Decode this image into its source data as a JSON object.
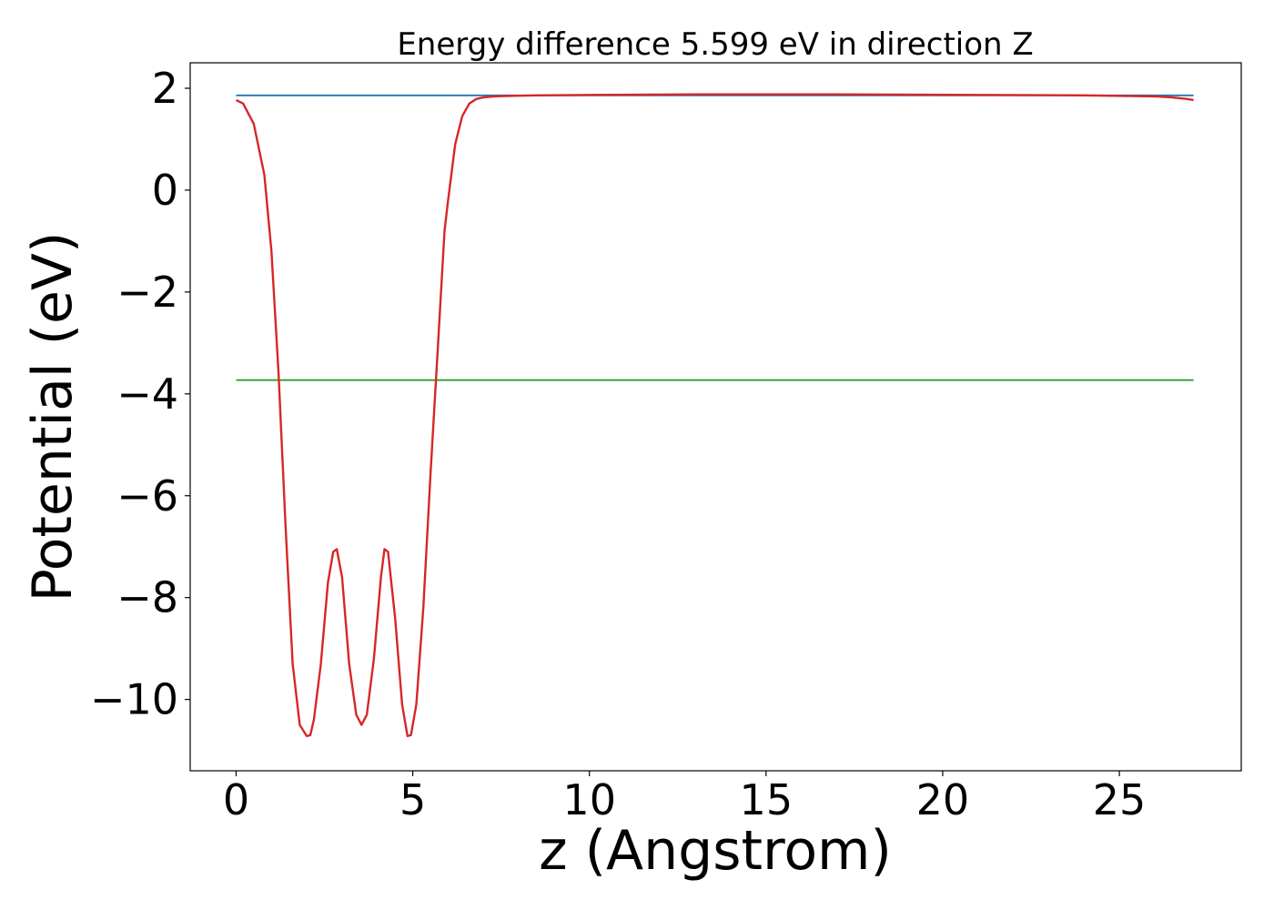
{
  "chart_data": {
    "type": "line",
    "title": "Energy difference 5.599 eV in direction Z",
    "xlabel": "z (Angstrom)",
    "ylabel": "Potential (eV)",
    "xlim": [
      -1.3,
      28.45
    ],
    "ylim": [
      -11.4,
      2.5
    ],
    "x_ticks": [
      0,
      5,
      10,
      15,
      20,
      25
    ],
    "y_ticks": [
      2,
      0,
      -2,
      -4,
      -6,
      -8,
      -10
    ],
    "x_tick_labels": [
      "0",
      "5",
      "10",
      "15",
      "20",
      "25"
    ],
    "y_tick_labels": [
      "2",
      "0",
      "−2",
      "−4",
      "−6",
      "−8",
      "−10"
    ],
    "grid": false,
    "legend": "none",
    "series": [
      {
        "color": "#1f77b4",
        "x": [
          0,
          27.1
        ],
        "y": [
          1.86,
          1.86
        ]
      },
      {
        "color": "#2ca02c",
        "x": [
          0,
          27.1
        ],
        "y": [
          -3.73,
          -3.73
        ]
      },
      {
        "color": "#d62728",
        "x": [
          0,
          0.2,
          0.5,
          0.8,
          1.0,
          1.2,
          1.4,
          1.6,
          1.8,
          2.0,
          2.1,
          2.2,
          2.4,
          2.6,
          2.75,
          2.85,
          3.0,
          3.2,
          3.4,
          3.55,
          3.7,
          3.9,
          4.1,
          4.2,
          4.3,
          4.5,
          4.7,
          4.85,
          4.95,
          5.1,
          5.3,
          5.5,
          5.7,
          5.9,
          6.0,
          6.2,
          6.4,
          6.6,
          6.8,
          7.0,
          7.3,
          7.7,
          8.5,
          10.0,
          13.0,
          17.0,
          21.0,
          24.0,
          26.0,
          26.5,
          26.9,
          27.1
        ],
        "y": [
          1.77,
          1.7,
          1.3,
          0.3,
          -1.2,
          -3.6,
          -6.6,
          -9.3,
          -10.5,
          -10.72,
          -10.7,
          -10.4,
          -9.3,
          -7.7,
          -7.1,
          -7.05,
          -7.6,
          -9.3,
          -10.3,
          -10.5,
          -10.3,
          -9.2,
          -7.6,
          -7.05,
          -7.1,
          -8.4,
          -10.1,
          -10.72,
          -10.7,
          -10.1,
          -8.2,
          -5.6,
          -3.2,
          -0.8,
          -0.2,
          0.9,
          1.45,
          1.7,
          1.79,
          1.82,
          1.84,
          1.85,
          1.86,
          1.87,
          1.88,
          1.88,
          1.87,
          1.86,
          1.84,
          1.82,
          1.79,
          1.77
        ]
      }
    ]
  }
}
